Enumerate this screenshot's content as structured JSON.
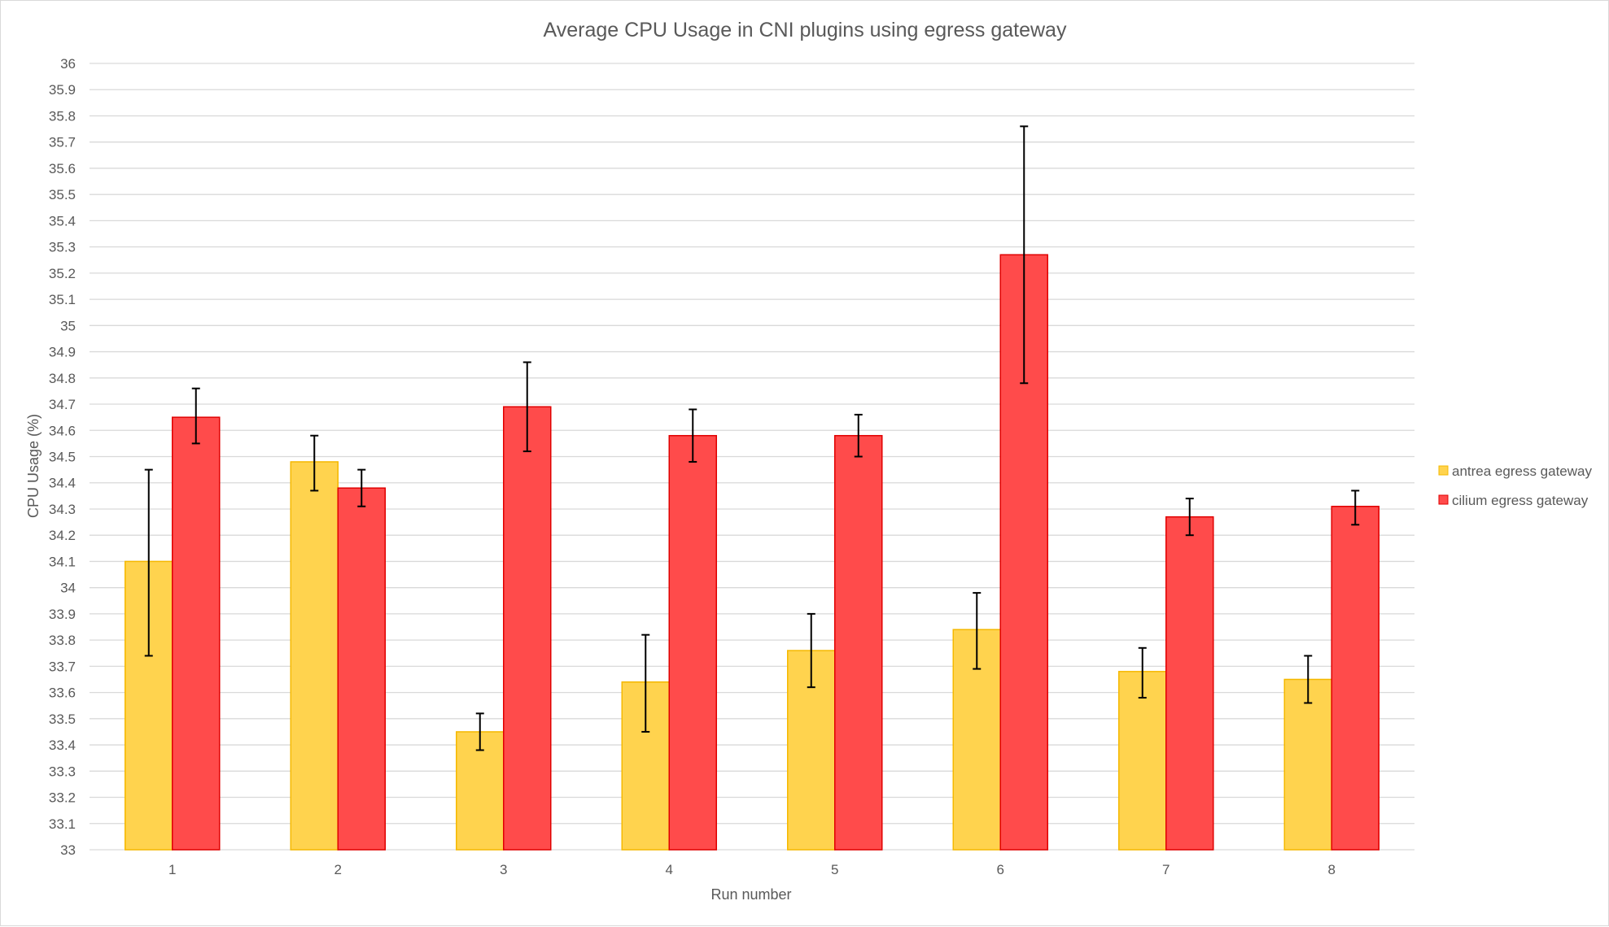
{
  "chart_data": {
    "type": "bar",
    "title": "Average CPU Usage in CNI plugins using egress gateway",
    "xlabel": "Run number",
    "ylabel": "CPU Usage (%)",
    "ylim": [
      33,
      36
    ],
    "y_ticks": [
      "33",
      "33.1",
      "33.2",
      "33.3",
      "33.4",
      "33.5",
      "33.6",
      "33.7",
      "33.8",
      "33.9",
      "34",
      "34.1",
      "34.2",
      "34.3",
      "34.4",
      "34.5",
      "34.6",
      "34.7",
      "34.8",
      "34.9",
      "35",
      "35.1",
      "35.2",
      "35.3",
      "35.4",
      "35.5",
      "35.6",
      "35.7",
      "35.8",
      "35.9",
      "36"
    ],
    "grid": true,
    "legend_position": "right",
    "categories": [
      "1",
      "2",
      "3",
      "4",
      "5",
      "6",
      "7",
      "8"
    ],
    "series": [
      {
        "name": "antrea egress gateway",
        "color": "#ffd34e",
        "stroke": "#f5b800",
        "values": [
          34.1,
          34.48,
          33.45,
          33.64,
          33.76,
          33.84,
          33.68,
          33.65
        ],
        "error_low": [
          33.74,
          34.37,
          33.38,
          33.45,
          33.62,
          33.69,
          33.58,
          33.56
        ],
        "error_high": [
          34.45,
          34.58,
          33.52,
          33.82,
          33.9,
          33.98,
          33.77,
          33.74
        ]
      },
      {
        "name": "cilium egress gateway",
        "color": "#ff4b4b",
        "stroke": "#e00000",
        "values": [
          34.65,
          34.38,
          34.69,
          34.58,
          34.58,
          35.27,
          34.27,
          34.31
        ],
        "error_low": [
          34.55,
          34.31,
          34.52,
          34.48,
          34.5,
          34.78,
          34.2,
          34.24
        ],
        "error_high": [
          34.76,
          34.45,
          34.86,
          34.68,
          34.66,
          35.76,
          34.34,
          34.37
        ]
      }
    ]
  }
}
